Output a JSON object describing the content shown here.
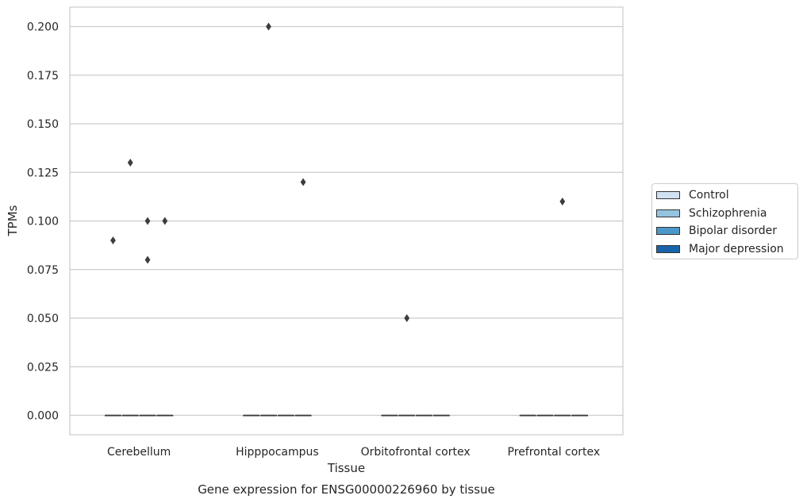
{
  "chart_data": {
    "type": "box",
    "title": "",
    "caption": "Gene expression for ENSG00000226960 by tissue",
    "xlabel": "Tissue",
    "ylabel": "TPMs",
    "ylim": [
      -0.01,
      0.21
    ],
    "yticks": [
      "0.000",
      "0.025",
      "0.050",
      "0.075",
      "0.100",
      "0.125",
      "0.150",
      "0.175",
      "0.200"
    ],
    "ytick_values": [
      0,
      0.025,
      0.05,
      0.075,
      0.1,
      0.125,
      0.15,
      0.175,
      0.2
    ],
    "categories": [
      "Cerebellum",
      "Hipppocampus",
      "Orbitofrontal cortex",
      "Prefrontal cortex"
    ],
    "grid": true,
    "legend_position": "right",
    "series": [
      {
        "name": "Control",
        "color": "#d0e1f2",
        "boxes": [
          {
            "q1": 0,
            "median": 0,
            "q3": 0
          },
          {
            "q1": 0,
            "median": 0,
            "q3": 0
          },
          {
            "q1": 0,
            "median": 0,
            "q3": 0
          },
          {
            "q1": 0,
            "median": 0,
            "q3": 0
          }
        ],
        "outliers": [
          [
            0.09
          ],
          [],
          [],
          []
        ]
      },
      {
        "name": "Schizophrenia",
        "color": "#94c4df",
        "boxes": [
          {
            "q1": 0,
            "median": 0,
            "q3": 0
          },
          {
            "q1": 0,
            "median": 0,
            "q3": 0
          },
          {
            "q1": 0,
            "median": 0,
            "q3": 0
          },
          {
            "q1": 0,
            "median": 0,
            "q3": 0
          }
        ],
        "outliers": [
          [
            0.13
          ],
          [
            0.2
          ],
          [
            0.05
          ],
          []
        ]
      },
      {
        "name": "Bipolar disorder",
        "color": "#4a98c9",
        "boxes": [
          {
            "q1": 0,
            "median": 0,
            "q3": 0
          },
          {
            "q1": 0,
            "median": 0,
            "q3": 0
          },
          {
            "q1": 0,
            "median": 0,
            "q3": 0
          },
          {
            "q1": 0,
            "median": 0,
            "q3": 0
          }
        ],
        "outliers": [
          [
            0.1,
            0.08
          ],
          [],
          [],
          [
            0.11
          ]
        ]
      },
      {
        "name": "Major depression",
        "color": "#1764ab",
        "boxes": [
          {
            "q1": 0,
            "median": 0,
            "q3": 0
          },
          {
            "q1": 0,
            "median": 0,
            "q3": 0
          },
          {
            "q1": 0,
            "median": 0,
            "q3": 0
          },
          {
            "q1": 0,
            "median": 0,
            "q3": 0
          }
        ],
        "outliers": [
          [
            0.1
          ],
          [
            0.12
          ],
          [],
          []
        ]
      }
    ]
  }
}
